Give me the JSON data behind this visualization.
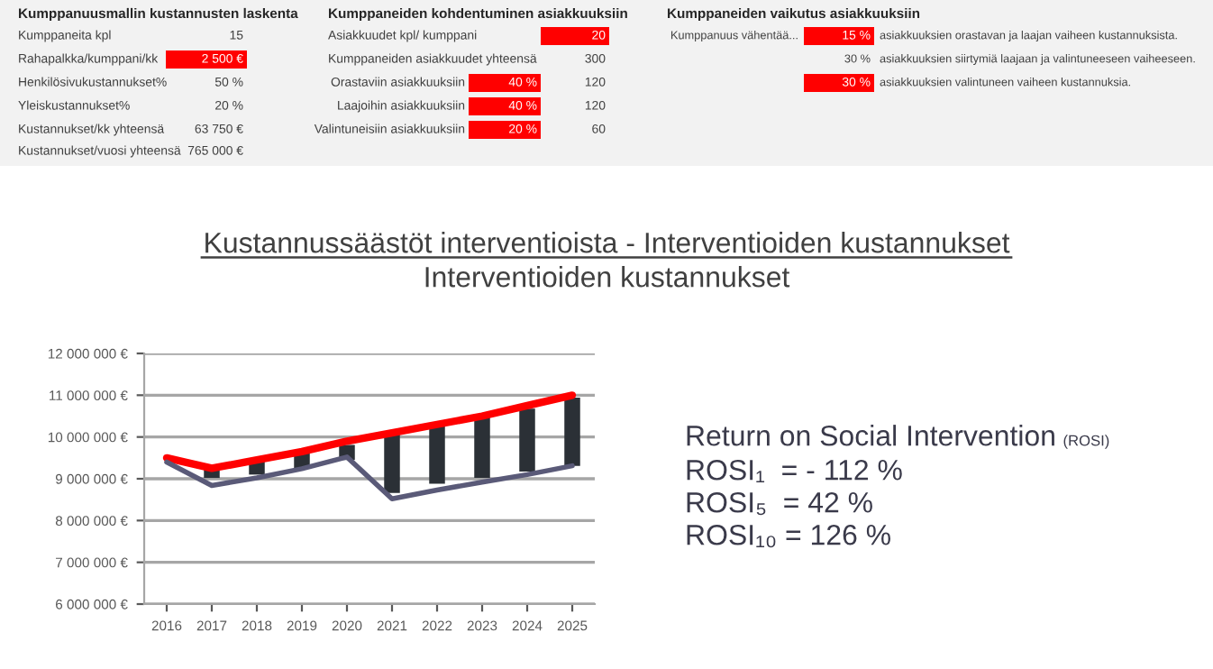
{
  "chart_data": {
    "type": "bar",
    "title": "Kustannussäästöt interventioista - Interventioiden kustannukset",
    "subtitle": "Interventioiden kustannukset",
    "categories": [
      "2016",
      "2017",
      "2018",
      "2019",
      "2020",
      "2021",
      "2022",
      "2023",
      "2024",
      "2025"
    ],
    "series": [
      {
        "color": "#2b3036",
        "values": [
          null,
          250000,
          350000,
          430000,
          360000,
          1440000,
          1370000,
          1510000,
          1510000,
          1630000
        ],
        "base": [
          null,
          9020000,
          9100000,
          9240000,
          9450000,
          8660000,
          8880000,
          9020000,
          9170000,
          9310000
        ]
      },
      {
        "type": "line",
        "color": "#ff0000",
        "values": [
          9500000,
          9250000,
          9450000,
          9650000,
          9900000,
          10100000,
          10300000,
          10500000,
          10750000,
          11000000
        ]
      },
      {
        "type": "line",
        "color": "#5a5a78",
        "values": [
          9400000,
          8840000,
          9020000,
          9240000,
          9520000,
          8520000,
          8730000,
          8920000,
          9100000,
          9310000
        ]
      }
    ],
    "ylim": [
      6000000,
      12000000
    ],
    "yticks": [
      {
        "value": 6000000,
        "label": "6 000 000 €"
      },
      {
        "value": 7000000,
        "label": "7 000 000 €"
      },
      {
        "value": 8000000,
        "label": "8 000 000 €"
      },
      {
        "value": 9000000,
        "label": "9 000 000 €"
      },
      {
        "value": 10000000,
        "label": "10 000 000 €"
      },
      {
        "value": 11000000,
        "label": "11 000 000 €"
      },
      {
        "value": 12000000,
        "label": "12 000 000 €"
      }
    ],
    "grid": "y",
    "annotations": [
      "Kumppanuusmallin kustannusten laskenta",
      "Kumppaneita kpl",
      "15",
      "Rahapalkka/kumppani/kk",
      "2 500 €",
      "Henkilösivukustannukset%",
      "50 %",
      "Yleiskustannukset%",
      "20 %",
      "Kustannukset/kk yhteensä",
      "63 750 €",
      "Kustannukset/vuosi yhteensä",
      "765 000 €",
      "Kumppaneiden kohdentuminen asiakkuuksiin",
      "Asiakkuudet kpl/ kumppani",
      "20",
      "Kumppaneiden asiakkuudet yhteensä",
      "300",
      "Orastaviin asiakkuuksiin",
      "40 %",
      "120",
      "Laajoihin asiakkuuksiin",
      "40 %",
      "120",
      "Valintuneisiin asiakkuuksiin",
      "20 %",
      "60",
      "Kumppaneiden vaikutus asiakkuuksiin",
      "Kumppanuus vähentää...",
      "15 %",
      "asiakkuuksien orastavan ja laajan vaiheen kustannuksista.",
      "30 %",
      "asiakkuuksien siirtymiä laajaan ja valintuneeseen vaiheeseen.",
      "30 %",
      "asiakkuuksien valintuneen vaiheen kustannuksia.",
      "Return on Social Intervention",
      "(ROSI)",
      "ROSI₁  = - 112 %",
      "ROSI₅  = 42 %",
      "ROSI₁₀ = 126 %"
    ]
  }
}
